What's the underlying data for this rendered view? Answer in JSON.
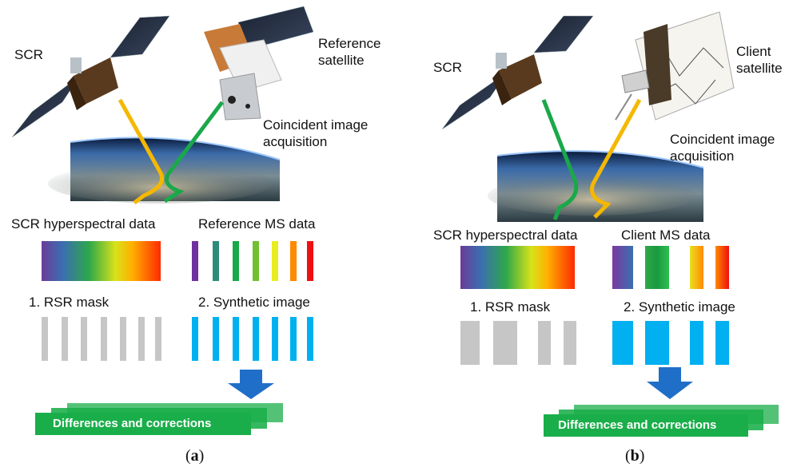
{
  "panels": {
    "a": {
      "scr_label": "SCR",
      "satellite_label": "Reference\nsatellite",
      "acquisition_label": "Coincident image\nacquisition",
      "hyperspectral_label": "SCR hyperspectral data",
      "ms_label": "Reference MS data",
      "rsr_label": "1. RSR mask",
      "synthetic_label": "2. Synthetic image",
      "result_label": "Differences and corrections",
      "caption_open": "(",
      "caption_letter": "a",
      "caption_close": ")",
      "ms_band_colors": [
        "#7030a0",
        "#2e8b7a",
        "#1aa84a",
        "#70c030",
        "#e8ec20",
        "#ff8a00",
        "#ee1010"
      ]
    },
    "b": {
      "scr_label": "SCR",
      "satellite_label": "Client\nsatellite",
      "acquisition_label": "Coincident image\nacquisition",
      "hyperspectral_label": "SCR hyperspectral data",
      "ms_label": "Client MS data",
      "rsr_label": "1. RSR mask",
      "synthetic_label": "2. Synthetic image",
      "result_label": "Differences and corrections",
      "caption_open": "(",
      "caption_letter": "b",
      "caption_close": ")"
    }
  },
  "colors": {
    "ray_yellow": "#f5b800",
    "ray_green": "#1aa84a",
    "arrow_blue": "#1f6fc8",
    "ribbon_green": "#1aae4a",
    "mask_gray": "#c6c6c6",
    "synthetic_blue": "#00b0f0"
  },
  "icons": [
    "satellite-icon",
    "earth-image",
    "down-arrow-icon"
  ]
}
